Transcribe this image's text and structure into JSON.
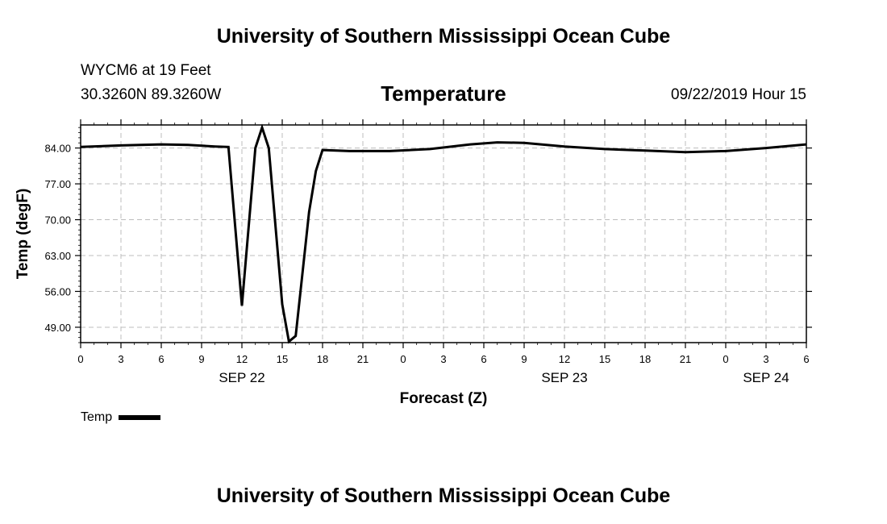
{
  "header": {
    "title": "University of Southern Mississippi Ocean Cube",
    "station": "WYCM6 at 19 Feet",
    "coords": "30.3260N 89.3260W",
    "subtitle": "Temperature",
    "datetime": "09/22/2019 Hour 15"
  },
  "footer": {
    "title": "University of Southern Mississippi Ocean Cube"
  },
  "chart_data": {
    "type": "line",
    "title": "Temperature",
    "xlabel": "Forecast (Z)",
    "ylabel": "Temp (degF)",
    "x_unit": "hours from 2019-09-22 00Z",
    "xlim": [
      0,
      54
    ],
    "ylim": [
      46,
      88.5
    ],
    "grid": true,
    "legend_position": "bottom-left",
    "y_ticks": [
      49,
      56,
      63,
      70,
      77,
      84
    ],
    "y_tick_labels": [
      "49.00",
      "56.00",
      "63.00",
      "70.00",
      "77.00",
      "84.00"
    ],
    "x_ticks": [
      0,
      3,
      6,
      9,
      12,
      15,
      18,
      21,
      24,
      27,
      30,
      33,
      36,
      39,
      42,
      45,
      48,
      51,
      54
    ],
    "x_tick_labels": [
      "0",
      "3",
      "6",
      "9",
      "12",
      "15",
      "18",
      "21",
      "0",
      "3",
      "6",
      "9",
      "12",
      "15",
      "18",
      "21",
      "0",
      "3",
      "6"
    ],
    "day_labels": [
      {
        "x": 12,
        "label": "SEP 22"
      },
      {
        "x": 36,
        "label": "SEP 23"
      },
      {
        "x": 51,
        "label": "SEP 24"
      }
    ],
    "series": [
      {
        "name": "Temp",
        "color": "#000000",
        "x": [
          0,
          3,
          6,
          8,
          10,
          11,
          12,
          13,
          13.5,
          14,
          15,
          15.5,
          16,
          17,
          17.5,
          18,
          20,
          23,
          26,
          29,
          31,
          33,
          36,
          39,
          42,
          45,
          48,
          51,
          54
        ],
        "y": [
          84.2,
          84.5,
          84.7,
          84.6,
          84.3,
          84.2,
          53.2,
          84.0,
          88.0,
          84.0,
          53.5,
          46.2,
          47.3,
          71.5,
          79.5,
          83.6,
          83.4,
          83.4,
          83.8,
          84.7,
          85.1,
          85.0,
          84.3,
          83.8,
          83.5,
          83.2,
          83.4,
          84.0,
          84.7
        ]
      }
    ]
  }
}
